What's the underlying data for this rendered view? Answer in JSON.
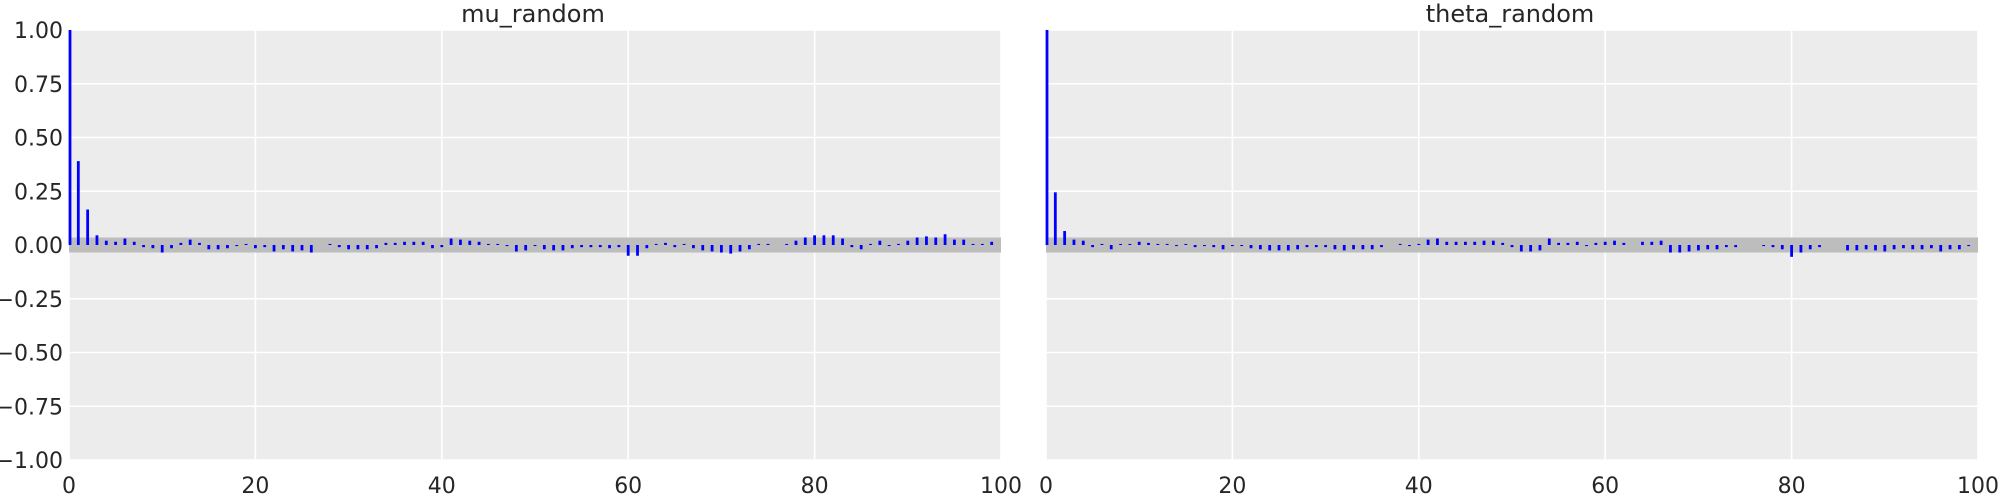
{
  "chart_data": [
    {
      "type": "bar",
      "subtype": "autocorrelation",
      "title": "mu_random",
      "xlabel": "",
      "ylabel": "",
      "xlim": [
        0,
        100
      ],
      "ylim": [
        -1.0,
        1.0
      ],
      "xticks": [
        "0",
        "20",
        "40",
        "60",
        "80",
        "100"
      ],
      "yticks": [
        "1.00",
        "0.75",
        "0.50",
        "0.25",
        "0.00",
        "−0.25",
        "−0.50",
        "−0.75",
        "−1.00"
      ],
      "grid": true,
      "band": [
        -0.035,
        0.035
      ],
      "lags": [
        0,
        1,
        2,
        3,
        4,
        5,
        6,
        7,
        8,
        9,
        10,
        11,
        12,
        13,
        14,
        15,
        16,
        17,
        18,
        19,
        20,
        21,
        22,
        23,
        24,
        25,
        26,
        27,
        28,
        29,
        30,
        31,
        32,
        33,
        34,
        35,
        36,
        37,
        38,
        39,
        40,
        41,
        42,
        43,
        44,
        45,
        46,
        47,
        48,
        49,
        50,
        51,
        52,
        53,
        54,
        55,
        56,
        57,
        58,
        59,
        60,
        61,
        62,
        63,
        64,
        65,
        66,
        67,
        68,
        69,
        70,
        71,
        72,
        73,
        74,
        75,
        76,
        77,
        78,
        79,
        80,
        81,
        82,
        83,
        84,
        85,
        86,
        87,
        88,
        89,
        90,
        91,
        92,
        93,
        94,
        95,
        96,
        97,
        98,
        99
      ],
      "values": [
        1.0,
        0.39,
        0.165,
        0.045,
        0.02,
        0.015,
        0.03,
        0.015,
        -0.01,
        -0.015,
        -0.035,
        -0.015,
        0.01,
        0.025,
        0.01,
        -0.02,
        -0.02,
        -0.015,
        -0.005,
        0.005,
        -0.015,
        -0.01,
        -0.03,
        -0.02,
        -0.03,
        -0.025,
        -0.035,
        0.0,
        0.005,
        -0.01,
        -0.02,
        -0.02,
        -0.02,
        -0.015,
        0.01,
        0.01,
        0.015,
        0.015,
        0.015,
        -0.015,
        -0.01,
        0.03,
        0.025,
        0.02,
        0.015,
        0.005,
        0.005,
        -0.005,
        -0.03,
        -0.025,
        -0.005,
        -0.02,
        -0.025,
        -0.025,
        -0.015,
        -0.01,
        -0.01,
        -0.01,
        -0.015,
        -0.01,
        -0.05,
        -0.05,
        -0.015,
        0.005,
        0.01,
        -0.01,
        0.005,
        -0.015,
        -0.025,
        -0.03,
        -0.035,
        -0.04,
        -0.03,
        -0.02,
        0.005,
        0.005,
        0.0,
        0.005,
        0.02,
        0.035,
        0.045,
        0.045,
        0.045,
        0.03,
        -0.01,
        -0.02,
        0.005,
        0.02,
        -0.005,
        0.005,
        0.02,
        0.035,
        0.04,
        0.035,
        0.05,
        0.025,
        0.025,
        0.005,
        0.005,
        0.015
      ],
      "color": "#0000ff",
      "band_color": "#bdbdbd",
      "background": "#ececec"
    },
    {
      "type": "bar",
      "subtype": "autocorrelation",
      "title": "theta_random",
      "xlabel": "",
      "ylabel": "",
      "xlim": [
        0,
        100
      ],
      "ylim": [
        -1.0,
        1.0
      ],
      "xticks": [
        "0",
        "20",
        "40",
        "60",
        "80",
        "100"
      ],
      "grid": true,
      "band": [
        -0.035,
        0.035
      ],
      "lags": [
        0,
        1,
        2,
        3,
        4,
        5,
        6,
        7,
        8,
        9,
        10,
        11,
        12,
        13,
        14,
        15,
        16,
        17,
        18,
        19,
        20,
        21,
        22,
        23,
        24,
        25,
        26,
        27,
        28,
        29,
        30,
        31,
        32,
        33,
        34,
        35,
        36,
        37,
        38,
        39,
        40,
        41,
        42,
        43,
        44,
        45,
        46,
        47,
        48,
        49,
        50,
        51,
        52,
        53,
        54,
        55,
        56,
        57,
        58,
        59,
        60,
        61,
        62,
        63,
        64,
        65,
        66,
        67,
        68,
        69,
        70,
        71,
        72,
        73,
        74,
        75,
        76,
        77,
        78,
        79,
        80,
        81,
        82,
        83,
        84,
        85,
        86,
        87,
        88,
        89,
        90,
        91,
        92,
        93,
        94,
        95,
        96,
        97,
        98,
        99
      ],
      "values": [
        1.0,
        0.245,
        0.065,
        0.025,
        0.02,
        -0.01,
        0.005,
        -0.02,
        0.005,
        0.005,
        0.015,
        0.01,
        0.005,
        0.005,
        -0.005,
        0.005,
        -0.01,
        -0.005,
        -0.01,
        -0.02,
        -0.005,
        -0.005,
        -0.015,
        -0.02,
        -0.025,
        -0.025,
        -0.025,
        -0.02,
        -0.01,
        -0.01,
        -0.01,
        -0.02,
        -0.025,
        -0.02,
        -0.02,
        -0.02,
        -0.01,
        0.0,
        0.005,
        -0.005,
        0.005,
        0.025,
        0.03,
        0.015,
        0.015,
        0.015,
        0.015,
        0.02,
        0.02,
        0.01,
        -0.01,
        -0.03,
        -0.03,
        -0.025,
        0.03,
        0.01,
        0.01,
        0.015,
        -0.005,
        0.01,
        0.015,
        0.02,
        0.01,
        0.0,
        0.015,
        0.015,
        0.02,
        -0.035,
        -0.035,
        -0.03,
        -0.025,
        -0.02,
        -0.02,
        -0.01,
        -0.01,
        0.0,
        0.0,
        -0.005,
        -0.01,
        -0.02,
        -0.055,
        -0.035,
        -0.02,
        -0.01,
        0.0,
        0.0,
        -0.025,
        -0.025,
        -0.02,
        -0.025,
        -0.03,
        -0.02,
        -0.015,
        -0.02,
        -0.02,
        -0.015,
        -0.03,
        -0.02,
        -0.02,
        -0.005
      ],
      "color": "#0000ff",
      "band_color": "#bdbdbd",
      "background": "#ececec"
    }
  ]
}
